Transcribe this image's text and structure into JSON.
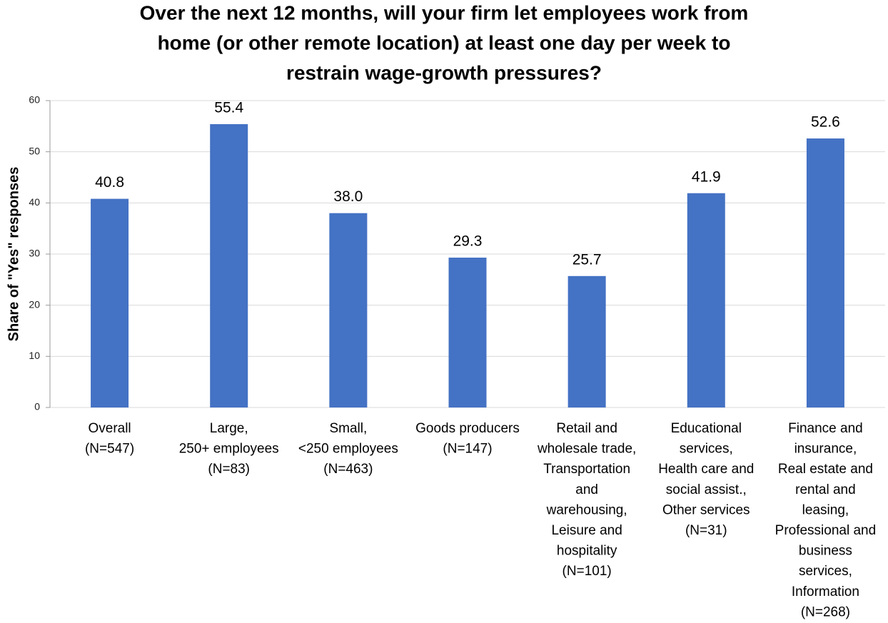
{
  "chart_data": {
    "type": "bar",
    "title": [
      "Over the next 12 months, will your firm let employees work from",
      "home (or other remote location) at least one day per week to",
      "restrain wage-growth pressures?"
    ],
    "y_label": "Share of \"Yes\" responses",
    "categories": [
      [
        "Overall",
        "(N=547)"
      ],
      [
        "Large,",
        "250+ employees",
        "(N=83)"
      ],
      [
        "Small,",
        "<250 employees",
        "(N=463)"
      ],
      [
        "Goods producers",
        "(N=147)"
      ],
      [
        "Retail and",
        "wholesale trade,",
        "Transportation",
        "and",
        "warehousing,",
        "Leisure and",
        "hospitality",
        "(N=101)"
      ],
      [
        "Educational",
        "services,",
        "Health care and",
        "social assist.,",
        "Other services",
        "(N=31)"
      ],
      [
        "Finance and",
        "insurance,",
        "Real estate and",
        "rental and",
        "leasing,",
        "Professional and",
        "business",
        "services,",
        "Information",
        "(N=268)"
      ]
    ],
    "values": [
      40.8,
      55.4,
      38.0,
      29.3,
      25.7,
      41.9,
      52.6
    ],
    "value_labels": [
      "40.8",
      "55.4",
      "38.0",
      "29.3",
      "25.7",
      "41.9",
      "52.6"
    ],
    "color": "#4472c4",
    "ylim": [
      0,
      60
    ],
    "yticks": [
      0,
      10,
      20,
      30,
      40,
      50,
      60
    ],
    "grid": true
  }
}
